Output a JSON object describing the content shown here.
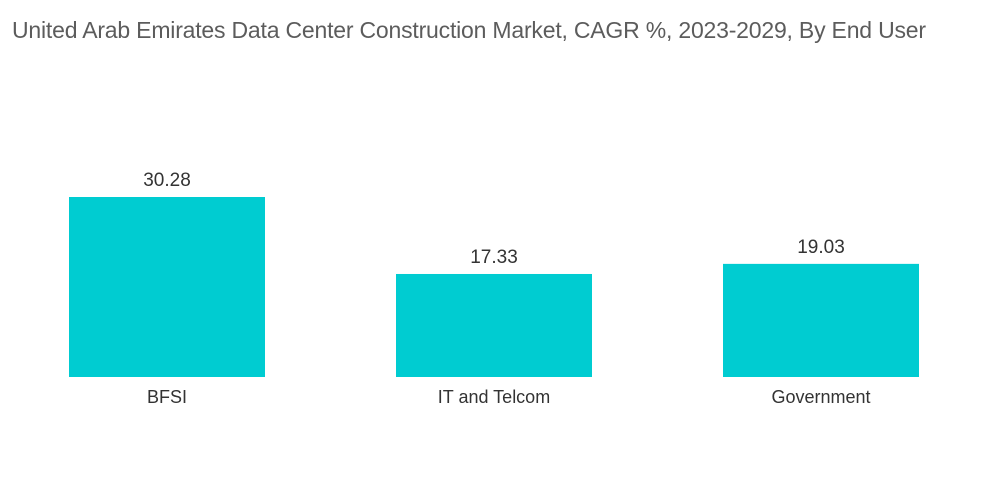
{
  "chart_data": {
    "type": "bar",
    "title": "United Arab Emirates Data Center Construction Market, CAGR %, 2023-2029, By End User",
    "categories": [
      "BFSI",
      "IT and Telcom",
      "Government"
    ],
    "values": [
      30.28,
      17.33,
      19.03
    ],
    "value_labels": [
      "30.28",
      "17.33",
      "19.03"
    ],
    "xlabel": "",
    "ylabel": "",
    "ylim": [
      0,
      35
    ],
    "grid": false,
    "legend": "none",
    "colors": {
      "bar": "#00ccd1",
      "text": "#333333",
      "title": "#5c5c5c"
    }
  }
}
